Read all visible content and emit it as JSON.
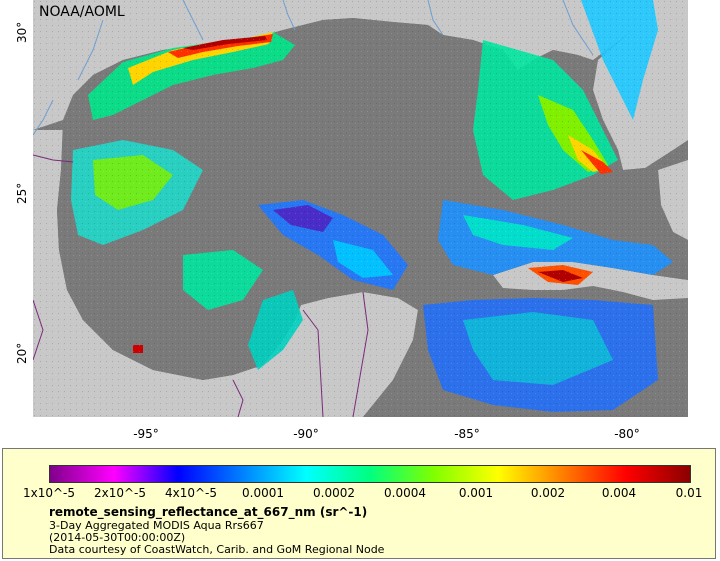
{
  "map": {
    "credit": "NOAA/AOML",
    "lat_ticks": [
      "30°",
      "25°",
      "20°"
    ],
    "lon_ticks": [
      "-95°",
      "-90°",
      "-85°",
      "-80°"
    ],
    "colors": {
      "land": "#c8c8c8",
      "ocean_nodata": "#7a7a7a",
      "rivers": "#6e9fd1",
      "borders": "#7a2a7a"
    }
  },
  "legend": {
    "colorbar_ticks": [
      "1x10^-5",
      "2x10^-5",
      "4x10^-5",
      "0.0001",
      "0.0002",
      "0.0004",
      "0.001",
      "0.002",
      "0.004",
      "0.01"
    ],
    "colorbar_colors": [
      "#80008a",
      "#ff00ff",
      "#0000ff",
      "#0080ff",
      "#00ffff",
      "#00ff80",
      "#80ff00",
      "#ffff00",
      "#ff8000",
      "#ff0000",
      "#8b0000"
    ],
    "variable": "remote_sensing_reflectance_at_667_nm (sr^-1)",
    "line1": "3-Day Aggregated MODIS Aqua Rrs667",
    "line2": "(2014-05-30T00:00:00Z)",
    "line3": "Data courtesy of CoastWatch, Carib. and GoM Regional Node"
  }
}
